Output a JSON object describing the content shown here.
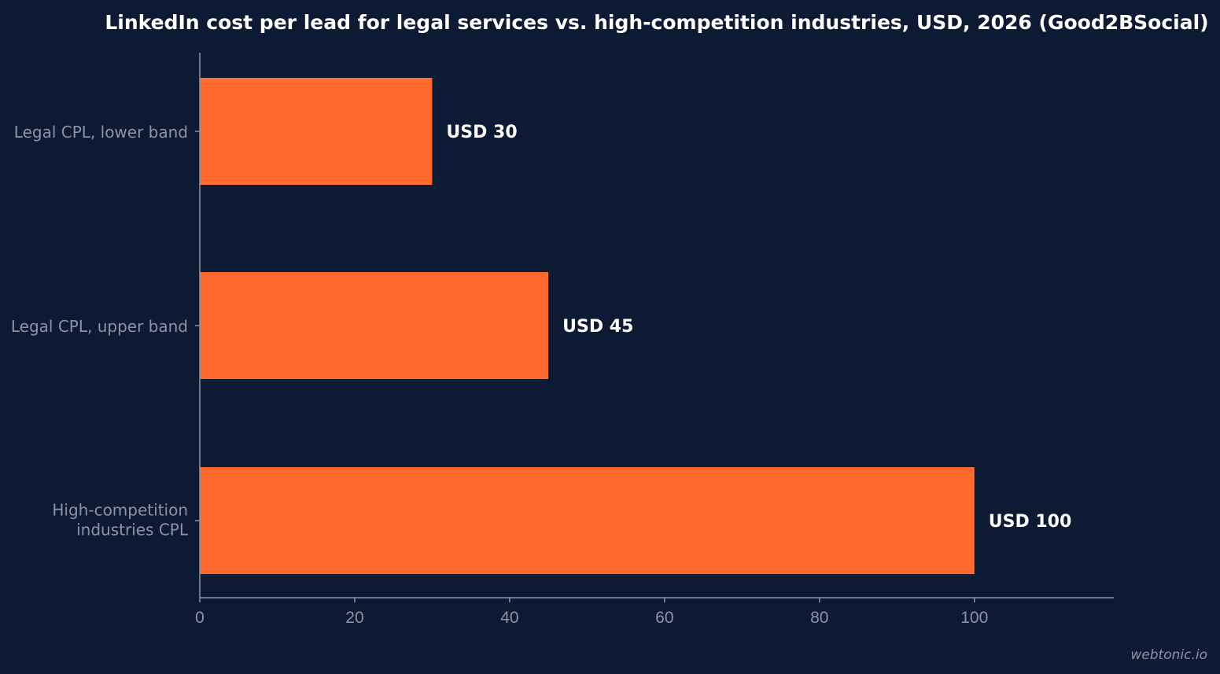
{
  "chart_data": {
    "type": "bar",
    "orientation": "horizontal",
    "title": "LinkedIn cost per lead for legal services vs. high-competition industries, USD, 2026 (Good2BSocial)",
    "categories": [
      "Legal CPL, lower band",
      "Legal CPL, upper band",
      "High-competition industries CPL"
    ],
    "category_label_lines": [
      [
        "Legal CPL, lower band"
      ],
      [
        "Legal CPL, upper band"
      ],
      [
        "High-competition",
        "industries CPL"
      ]
    ],
    "values": [
      30,
      45,
      100
    ],
    "data_labels": [
      "USD 30",
      "USD 45",
      "USD 100"
    ],
    "xlim": [
      0,
      118
    ],
    "xticks": [
      0,
      20,
      40,
      60,
      80,
      100
    ],
    "xlabel": "",
    "ylabel": "",
    "grid": false,
    "legend": "none",
    "colors": {
      "bar": "#ff6b2e",
      "background": "#0c1b33",
      "axis": "#8a94a7",
      "label_text": "#8a94a7",
      "value_text": "#ffffff",
      "title_text": "#ffffff"
    }
  },
  "watermark": "webtonic.io"
}
